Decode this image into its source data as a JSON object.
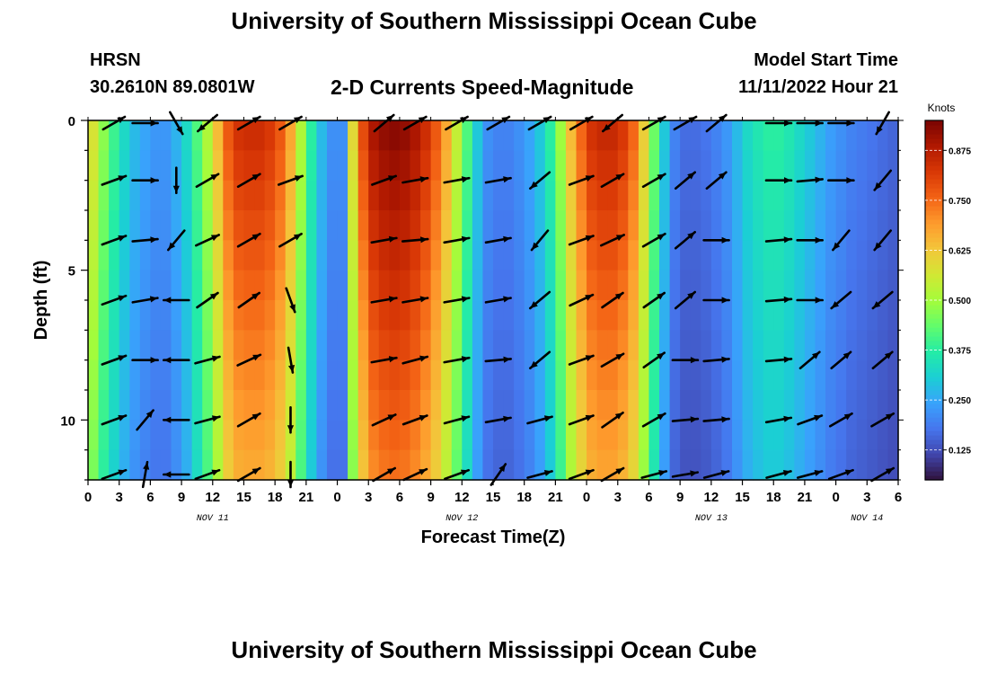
{
  "header": {
    "title": "University of Southern Mississippi Ocean Cube",
    "station": "HRSN",
    "coords": "30.2610N  89.0801W",
    "subtitle": "2-D Currents Speed-Magnitude",
    "start_label": "Model Start Time",
    "start_value": "11/11/2022 Hour 21"
  },
  "footer": {
    "title": "University of Southern Mississippi Ocean Cube"
  },
  "colors": {
    "arrow": "#000000",
    "colormap": [
      "#30123b",
      "#4145ab",
      "#4675ed",
      "#39a2fc",
      "#1bcfd4",
      "#24eca6",
      "#61fc6c",
      "#a4fc3b",
      "#d1e834",
      "#f3c63a",
      "#fe9b2d",
      "#f36315",
      "#d93806",
      "#b11901",
      "#7a0402"
    ]
  },
  "chart_data": {
    "type": "heatmap",
    "title": "2-D Currents Speed-Magnitude",
    "xlabel": "Forecast Time(Z)",
    "ylabel": "Depth (ft)",
    "x_unit": "hours from 11/11 00Z",
    "xlim": [
      0,
      78
    ],
    "ylim": [
      0,
      12
    ],
    "x_tick_labels": [
      "0",
      "3",
      "6",
      "9",
      "12",
      "15",
      "18",
      "21",
      "0",
      "3",
      "6",
      "9",
      "12",
      "15",
      "18",
      "21",
      "0",
      "3",
      "6",
      "9",
      "12",
      "15",
      "18",
      "21",
      "0",
      "3",
      "6"
    ],
    "y_ticks": [
      0,
      5,
      10
    ],
    "y_tick_labels": [
      "0",
      "5",
      "10"
    ],
    "day_labels": [
      {
        "x": 12,
        "label": "NOV 11"
      },
      {
        "x": 36,
        "label": "NOV 12"
      },
      {
        "x": 60,
        "label": "NOV 13"
      },
      {
        "x": 75,
        "label": "NOV 14"
      }
    ],
    "colorbar": {
      "label": "Knots",
      "range": [
        0.05,
        0.95
      ],
      "ticks": [
        0.125,
        0.25,
        0.375,
        0.5,
        0.625,
        0.75,
        0.875
      ],
      "tick_labels": [
        "0.125",
        "0.250",
        "0.375",
        "0.500",
        "0.625",
        "0.750",
        "0.875"
      ]
    },
    "speed_profile": {
      "x": [
        0,
        1,
        2,
        3,
        4,
        5,
        6,
        7,
        8,
        9,
        10,
        11,
        12,
        13,
        14,
        15,
        16,
        17,
        18,
        19,
        20,
        21,
        22,
        23,
        24,
        25,
        26,
        27,
        28,
        29,
        30,
        31,
        32,
        33,
        34,
        35,
        36,
        37,
        38,
        39,
        40,
        41,
        42,
        43,
        44,
        45,
        46,
        47,
        48,
        49,
        50,
        51,
        52,
        53,
        54,
        55,
        56,
        57,
        58,
        59,
        60,
        61,
        62,
        63,
        64,
        65,
        66,
        67,
        68,
        69,
        70,
        71,
        72,
        73,
        74,
        75,
        76,
        77,
        78
      ],
      "surface": [
        0.58,
        0.48,
        0.4,
        0.33,
        0.28,
        0.25,
        0.23,
        0.23,
        0.27,
        0.33,
        0.42,
        0.52,
        0.65,
        0.78,
        0.84,
        0.85,
        0.85,
        0.83,
        0.78,
        0.68,
        0.52,
        0.38,
        0.28,
        0.22,
        0.22,
        0.6,
        0.8,
        0.9,
        0.93,
        0.94,
        0.93,
        0.9,
        0.85,
        0.78,
        0.68,
        0.55,
        0.42,
        0.3,
        0.22,
        0.2,
        0.2,
        0.22,
        0.25,
        0.3,
        0.38,
        0.5,
        0.65,
        0.76,
        0.84,
        0.86,
        0.86,
        0.83,
        0.76,
        0.62,
        0.45,
        0.3,
        0.2,
        0.17,
        0.17,
        0.18,
        0.2,
        0.23,
        0.28,
        0.33,
        0.36,
        0.38,
        0.38,
        0.36,
        0.33,
        0.3,
        0.27,
        0.24,
        0.22,
        0.2,
        0.19,
        0.18,
        0.17,
        0.16,
        0.14
      ],
      "attenuation": [
        0.98,
        0.98,
        0.98,
        0.98,
        0.98,
        0.98,
        0.98,
        0.98,
        0.98,
        0.98,
        0.98,
        0.98,
        0.98,
        0.98,
        0.98,
        0.98,
        0.98,
        0.98,
        0.98,
        0.98,
        0.98,
        0.98,
        0.98,
        0.98,
        0.98,
        0.98,
        0.98,
        0.98,
        0.98,
        0.98,
        0.98,
        0.98,
        0.98,
        0.98,
        0.98,
        0.98,
        0.98,
        0.98,
        0.98,
        0.98,
        0.98,
        0.98,
        0.98,
        0.98,
        0.98,
        0.98,
        0.98,
        0.98,
        0.98,
        0.98,
        0.98,
        0.98,
        0.98,
        0.98,
        0.98,
        0.98,
        0.98,
        0.98,
        0.98,
        0.98,
        0.98,
        0.98,
        0.98,
        0.98,
        0.98,
        0.98,
        0.98,
        0.98,
        0.98,
        0.98,
        0.98,
        0.98,
        0.98,
        0.98,
        0.98,
        0.98,
        0.98,
        0.98,
        0.98
      ]
    },
    "vectors": {
      "columns_x": [
        2.5,
        5.5,
        8.5,
        11.5,
        15.5,
        19.5,
        28.5,
        31.5,
        35.5,
        39.5,
        43.5,
        47.5,
        50.5,
        54.5,
        57.5,
        60.5,
        66.5,
        69.5,
        72.5,
        76.5
      ],
      "rows_depth": [
        0,
        2,
        4,
        6,
        8,
        10,
        12
      ],
      "directions_deg": [
        [
          30,
          0,
          -60,
          -140,
          30,
          30,
          40,
          30,
          30,
          30,
          30,
          30,
          -140,
          30,
          30,
          40,
          0,
          0,
          0,
          -120
        ],
        [
          20,
          0,
          -90,
          30,
          30,
          20,
          20,
          10,
          10,
          10,
          -140,
          20,
          30,
          30,
          40,
          40,
          0,
          5,
          0,
          -130
        ],
        [
          20,
          5,
          -130,
          25,
          30,
          30,
          10,
          5,
          10,
          10,
          -130,
          20,
          25,
          30,
          40,
          0,
          5,
          0,
          -130,
          -130
        ],
        [
          20,
          10,
          180,
          35,
          35,
          -70,
          10,
          10,
          10,
          10,
          -140,
          25,
          35,
          35,
          40,
          0,
          5,
          0,
          -140,
          -140
        ],
        [
          20,
          0,
          180,
          15,
          25,
          -80,
          10,
          15,
          10,
          5,
          -140,
          20,
          30,
          35,
          0,
          5,
          5,
          40,
          40,
          40
        ],
        [
          20,
          50,
          180,
          15,
          30,
          -90,
          25,
          20,
          15,
          10,
          15,
          20,
          35,
          30,
          5,
          5,
          10,
          20,
          30,
          30
        ],
        [
          20,
          80,
          180,
          20,
          30,
          -90,
          30,
          25,
          20,
          55,
          15,
          20,
          30,
          15,
          10,
          15,
          15,
          15,
          20,
          30
        ]
      ]
    }
  }
}
